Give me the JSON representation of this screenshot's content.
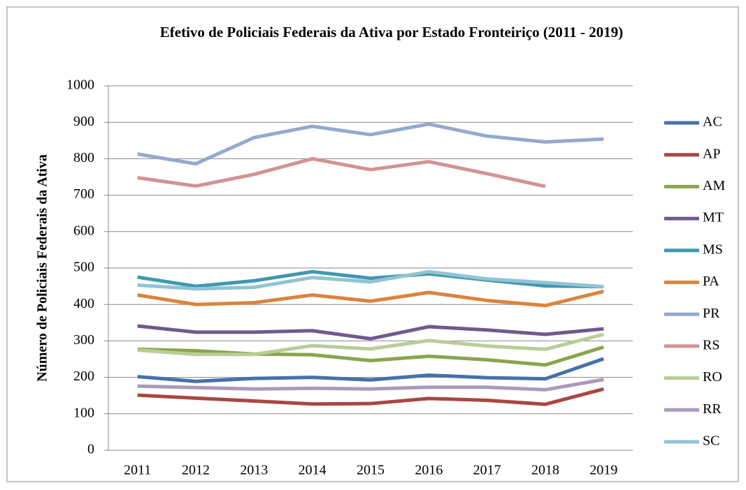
{
  "chart_data": {
    "type": "line",
    "title": "Efetivo de Policiais Federais da Ativa por Estado Fronteiriço (2011 - 2019)",
    "y_label": "Número de Policiais Federais da Ativa",
    "categories": [
      "2011",
      "2012",
      "2013",
      "2014",
      "2015",
      "2016",
      "2017",
      "2018",
      "2019"
    ],
    "ylim": [
      0,
      1000
    ],
    "yticks": [
      0,
      100,
      200,
      300,
      400,
      500,
      600,
      700,
      800,
      900,
      1000
    ],
    "grid": true,
    "legend": "right",
    "series": [
      {
        "name": "AC",
        "color": "#4572a7",
        "values": [
          202,
          189,
          197,
          200,
          193,
          206,
          199,
          196,
          251
        ]
      },
      {
        "name": "AP",
        "color": "#aa4643",
        "values": [
          151,
          143,
          135,
          127,
          128,
          142,
          137,
          126,
          168
        ]
      },
      {
        "name": "AM",
        "color": "#89a54e",
        "values": [
          277,
          273,
          264,
          262,
          246,
          258,
          248,
          234,
          283
        ]
      },
      {
        "name": "MT",
        "color": "#71588f",
        "values": [
          341,
          324,
          324,
          328,
          306,
          339,
          330,
          318,
          333
        ]
      },
      {
        "name": "MS",
        "color": "#4198af",
        "values": [
          475,
          450,
          465,
          490,
          472,
          484,
          467,
          451,
          449
        ]
      },
      {
        "name": "PA",
        "color": "#db843d",
        "values": [
          426,
          400,
          405,
          426,
          409,
          433,
          411,
          397,
          436
        ]
      },
      {
        "name": "PR",
        "color": "#93a9cf",
        "values": [
          813,
          786,
          858,
          889,
          866,
          895,
          862,
          846,
          854
        ]
      },
      {
        "name": "RS",
        "color": "#d19392",
        "values": [
          748,
          725,
          757,
          800,
          770,
          792,
          759,
          724,
          null
        ]
      },
      {
        "name": "RO",
        "color": "#b9cd96",
        "values": [
          275,
          263,
          263,
          287,
          278,
          301,
          286,
          277,
          318
        ]
      },
      {
        "name": "RR",
        "color": "#a99bbd",
        "values": [
          176,
          172,
          168,
          170,
          168,
          173,
          173,
          166,
          194
        ]
      },
      {
        "name": "SC",
        "color": "#92c3d4",
        "values": [
          453,
          443,
          447,
          474,
          462,
          490,
          470,
          460,
          449
        ]
      }
    ]
  }
}
